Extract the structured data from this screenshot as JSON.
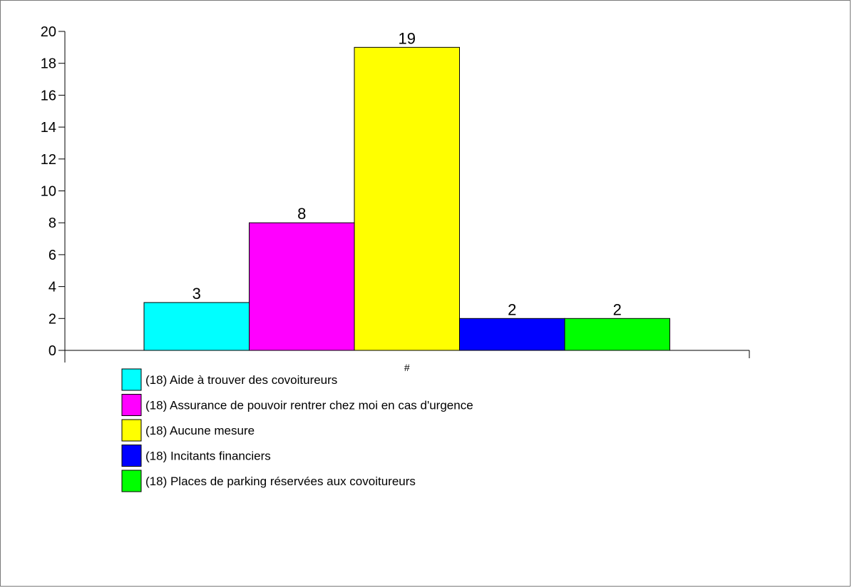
{
  "chart_data": {
    "type": "bar",
    "title": "",
    "xlabel": "",
    "ylabel": "",
    "x_tick_labels": [
      "#"
    ],
    "ylim": [
      0,
      20
    ],
    "yticks": [
      0,
      2,
      4,
      6,
      8,
      10,
      12,
      14,
      16,
      18,
      20
    ],
    "legend_placement": "bottom-left",
    "grid": false,
    "series": [
      {
        "name": "(18) Aide à trouver des covoitureurs",
        "value": 3,
        "value_label": "3",
        "color": "#00ffff"
      },
      {
        "name": "(18) Assurance de pouvoir rentrer chez moi en cas d'urgence",
        "value": 8,
        "value_label": "8",
        "color": "#ff00ff"
      },
      {
        "name": "(18) Aucune mesure",
        "value": 19,
        "value_label": "19",
        "color": "#ffff00"
      },
      {
        "name": "(18) Incitants financiers",
        "value": 2,
        "value_label": "2",
        "color": "#0000ff"
      },
      {
        "name": "(18) Places de parking réservées aux covoitureurs",
        "value": 2,
        "value_label": "2",
        "color": "#00ff00"
      }
    ]
  }
}
